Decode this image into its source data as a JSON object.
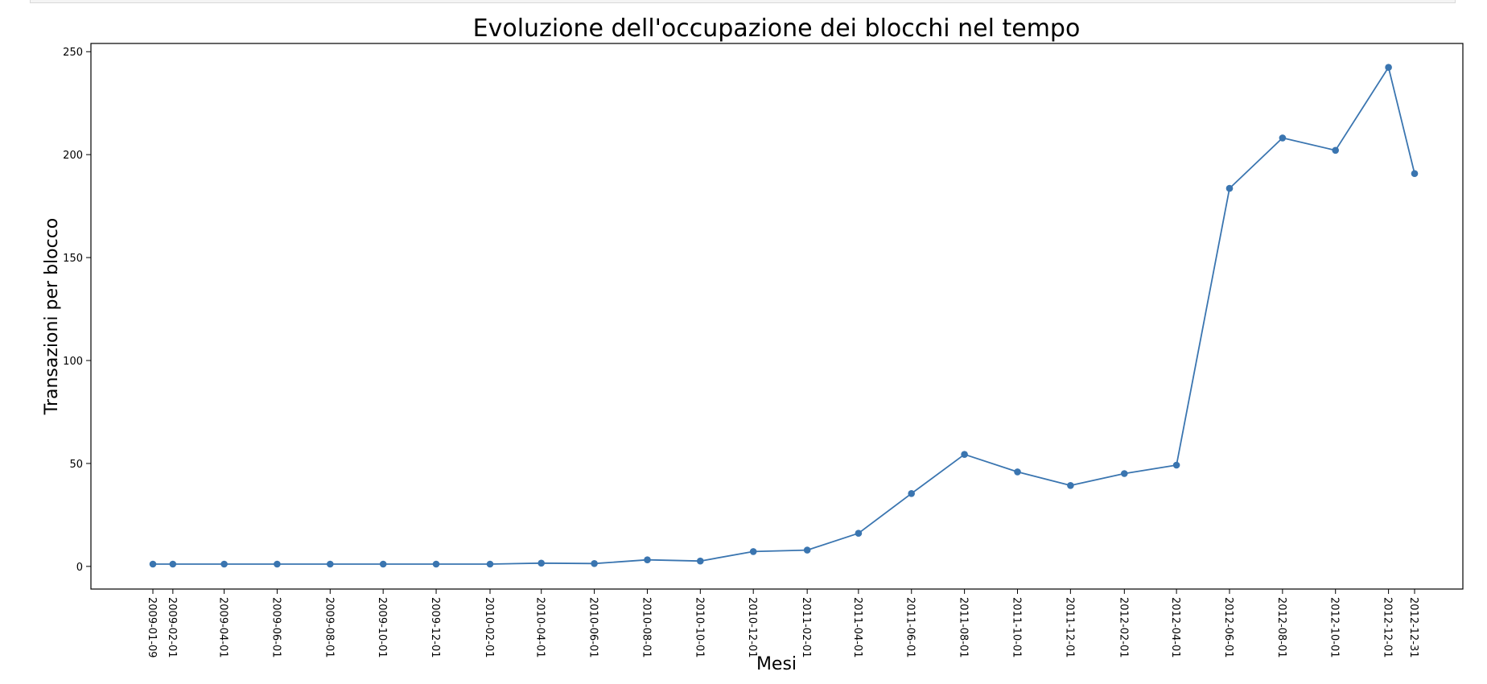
{
  "chart_data": {
    "type": "line",
    "title": "Evoluzione dell'occupazione dei blocchi nel tempo",
    "xlabel": "Mesi",
    "ylabel": "Transazioni per blocco",
    "ylim": [
      -11,
      254
    ],
    "yticks": [
      0,
      50,
      100,
      150,
      200,
      250
    ],
    "grid": false,
    "color": "#3a75b0",
    "x": [
      "2009-01-09",
      "2009-02-01",
      "2009-04-01",
      "2009-06-01",
      "2009-08-01",
      "2009-10-01",
      "2009-12-01",
      "2010-02-01",
      "2010-04-01",
      "2010-06-01",
      "2010-08-01",
      "2010-10-01",
      "2010-12-01",
      "2011-02-01",
      "2011-04-01",
      "2011-06-01",
      "2011-08-01",
      "2011-10-01",
      "2011-12-01",
      "2012-02-01",
      "2012-04-01",
      "2012-06-01",
      "2012-08-01",
      "2012-10-01",
      "2012-12-01",
      "2012-12-31"
    ],
    "values": [
      1.1,
      1.1,
      1.1,
      1.1,
      1.1,
      1.1,
      1.1,
      1.1,
      1.6,
      1.4,
      3.2,
      2.6,
      7.2,
      7.9,
      16.1,
      35.4,
      54.4,
      45.9,
      39.3,
      45.1,
      49.2,
      183.6,
      208.1,
      202.1,
      242.4,
      190.8
    ]
  }
}
